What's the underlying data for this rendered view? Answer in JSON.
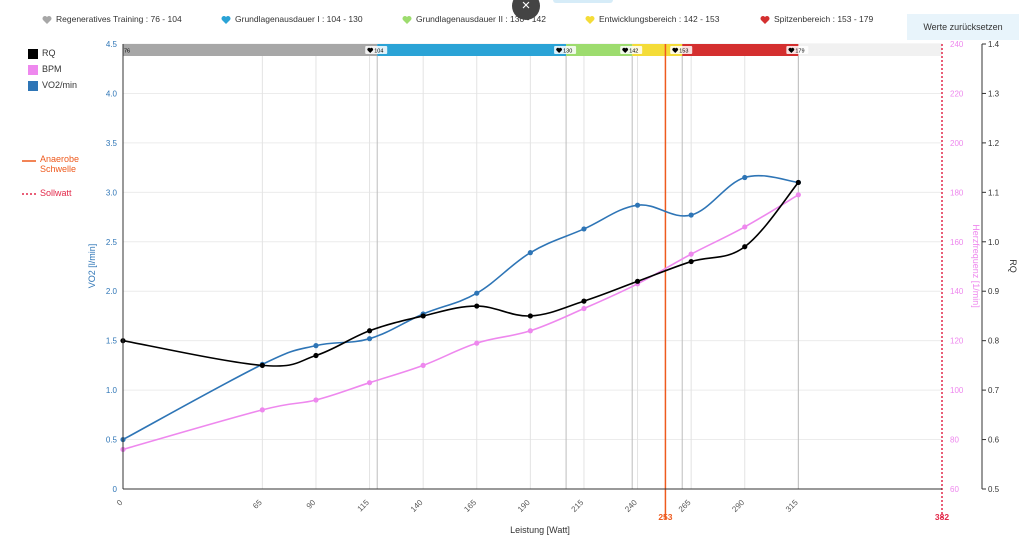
{
  "zones": [
    {
      "label": "Regeneratives Training : 76 - 104",
      "color": "#a7a7a7",
      "from": 76,
      "to": 104
    },
    {
      "label": "Grundlagenausdauer I : 104 - 130",
      "color": "#2aa3d6",
      "from": 104,
      "to": 130
    },
    {
      "label": "Grundlagenausdauer II : 130 - 142",
      "color": "#9ddc6e",
      "from": 130,
      "to": 142
    },
    {
      "label": "Entwicklungsbereich : 142 - 153",
      "color": "#f4dc38",
      "from": 142,
      "to": 153
    },
    {
      "label": "Spitzenbereich : 153 - 179",
      "color": "#d42f2f",
      "from": 153,
      "to": 179
    }
  ],
  "zone_bar_labels": [
    "76",
    "104",
    "130",
    "142",
    "153",
    "179"
  ],
  "reset_label": "Werte zurücksetzen",
  "close_label": "×",
  "legend": {
    "rq": {
      "label": "RQ",
      "color": "#000000"
    },
    "bpm": {
      "label": "BPM",
      "color": "#ee88ee"
    },
    "vo2": {
      "label": "VO2/min",
      "color": "#2e75b6"
    }
  },
  "ref_legend": {
    "anaerobe": {
      "label1": "Anaerobe",
      "label2": "Schwelle",
      "color": "#ee5a1e"
    },
    "sollwatt": {
      "label": "Sollwatt",
      "color": "#e2294a"
    }
  },
  "chart_data": {
    "type": "line",
    "xlabel": "Leistung [Watt]",
    "x": [
      0,
      65,
      90,
      115,
      140,
      165,
      190,
      215,
      240,
      265,
      290,
      315
    ],
    "xlim": [
      0,
      382
    ],
    "x_ticks": [
      0,
      65,
      90,
      115,
      140,
      165,
      190,
      215,
      240,
      265,
      290,
      315
    ],
    "y_left": {
      "label": "VO2 [l/min]",
      "min": 0,
      "max": 4.5,
      "ticks": [
        "0",
        "0.5",
        "1.0",
        "1.5",
        "2.0",
        "2.5",
        "3.0",
        "3.5",
        "4.0",
        "4.5"
      ]
    },
    "y_right1": {
      "label": "Herzfrequenz [1/min]",
      "min": 60,
      "max": 240,
      "ticks": [
        "60",
        "80",
        "100",
        "120",
        "140",
        "160",
        "180",
        "200",
        "220",
        "240"
      ]
    },
    "y_right2": {
      "label": "RQ",
      "min": 0.5,
      "max": 1.4,
      "ticks": [
        "0.5",
        "0.6",
        "0.7",
        "0.8",
        "0.9",
        "1.0",
        "1.1",
        "1.2",
        "1.3",
        "1.4"
      ]
    },
    "series": [
      {
        "name": "VO2/min",
        "axis": "left",
        "color": "#2e75b6",
        "values": [
          0.5,
          1.26,
          1.45,
          1.52,
          1.77,
          1.98,
          2.39,
          2.63,
          2.87,
          2.77,
          3.15,
          3.1
        ]
      },
      {
        "name": "BPM",
        "axis": "right1",
        "color": "#ee88ee",
        "values": [
          76,
          92,
          96,
          103,
          110,
          119,
          124,
          133,
          143,
          155,
          166,
          179
        ]
      },
      {
        "name": "RQ",
        "axis": "right2",
        "color": "#000000",
        "values": [
          0.8,
          0.75,
          0.77,
          0.82,
          0.85,
          0.87,
          0.85,
          0.88,
          0.92,
          0.96,
          0.99,
          1.12
        ]
      }
    ],
    "vlines": [
      {
        "x": 253,
        "label": "253",
        "color": "#ee5a1e",
        "style": "solid"
      },
      {
        "x": 382,
        "label": "382",
        "color": "#e2294a",
        "style": "dotted"
      }
    ],
    "grid": true
  }
}
